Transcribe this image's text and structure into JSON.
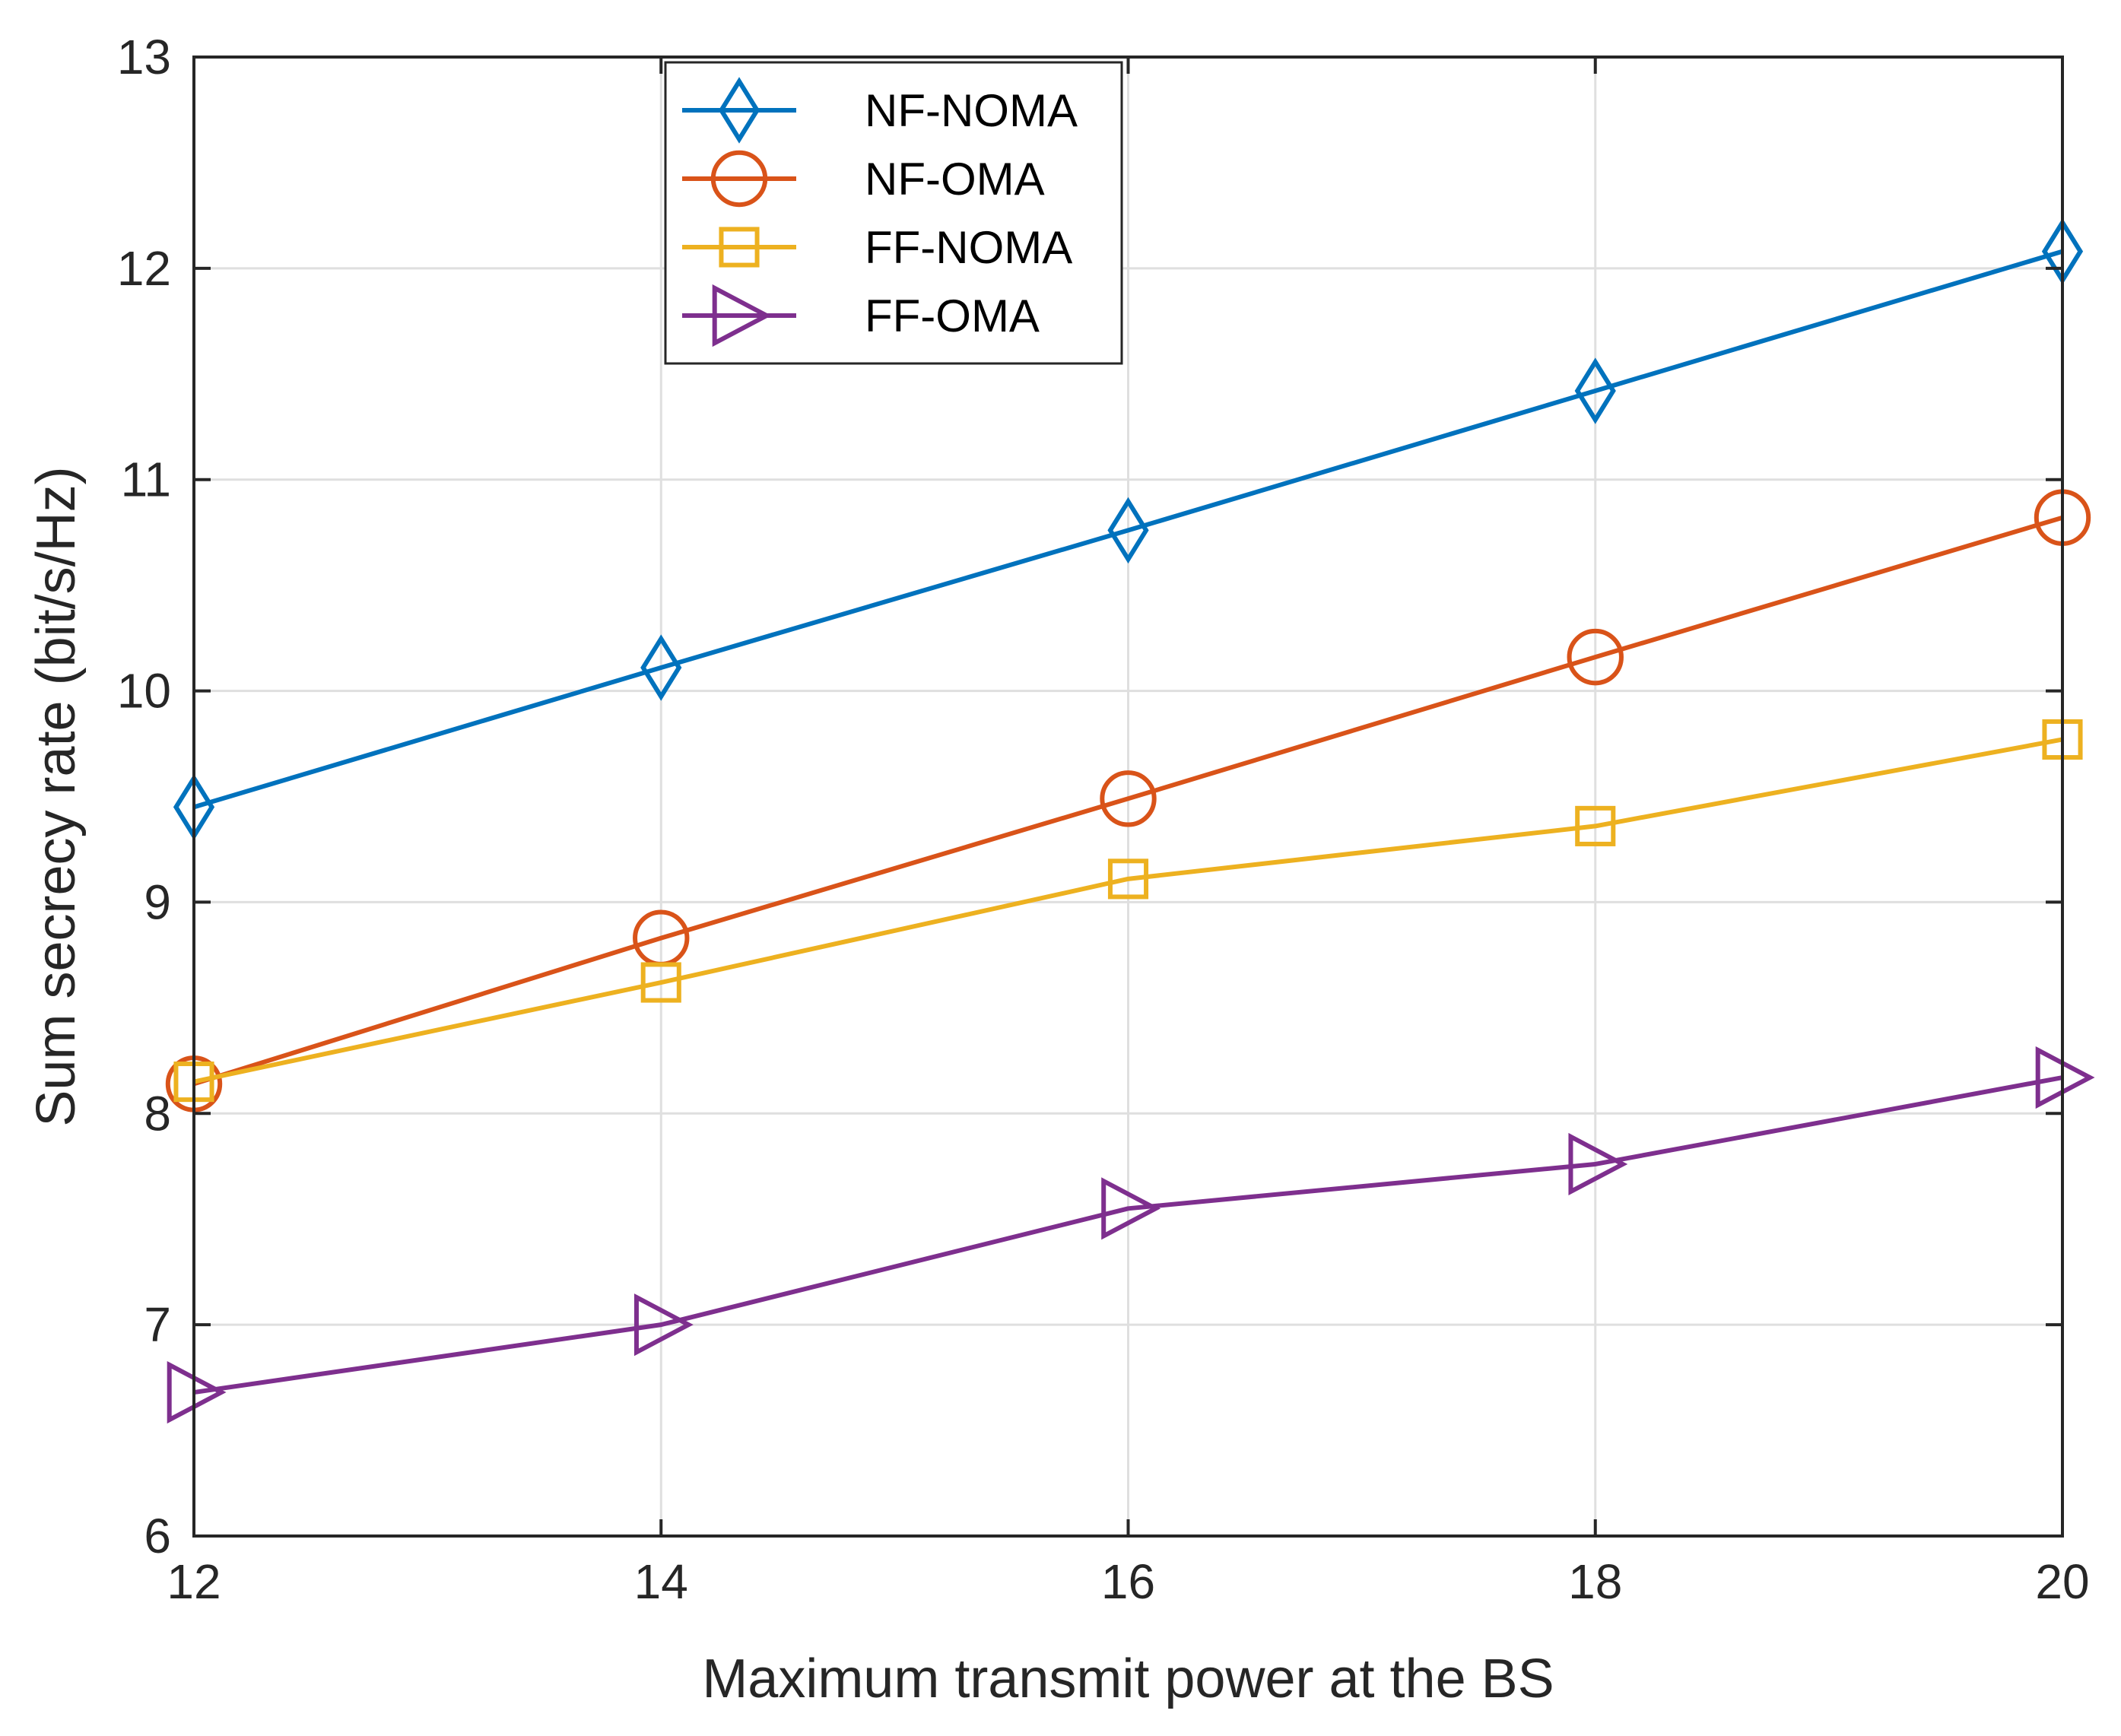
{
  "chart_data": {
    "type": "line",
    "xlabel": "Maximum transmit power at the BS",
    "ylabel": "Sum secrecy rate (bit/s/Hz)",
    "xlim": [
      12,
      20
    ],
    "ylim": [
      6,
      13
    ],
    "xticks": [
      12,
      14,
      16,
      18,
      20
    ],
    "yticks": [
      6,
      7,
      8,
      9,
      10,
      11,
      12,
      13
    ],
    "grid": true,
    "legend_position": "top-left",
    "x": [
      12,
      14,
      16,
      18,
      20
    ],
    "series": [
      {
        "name": "NF-NOMA",
        "values": [
          9.45,
          10.11,
          10.76,
          11.42,
          12.08
        ],
        "color": "#0072BD",
        "marker": "diamond"
      },
      {
        "name": "NF-OMA",
        "values": [
          8.14,
          8.83,
          9.49,
          10.16,
          10.82
        ],
        "color": "#D95319",
        "marker": "circle"
      },
      {
        "name": "FF-NOMA",
        "values": [
          8.15,
          8.62,
          9.11,
          9.36,
          9.77
        ],
        "color": "#EDB120",
        "marker": "square"
      },
      {
        "name": "FF-OMA",
        "values": [
          6.68,
          7.0,
          7.55,
          7.76,
          8.17
        ],
        "color": "#7E2F8E",
        "marker": "triangle-right"
      }
    ]
  }
}
